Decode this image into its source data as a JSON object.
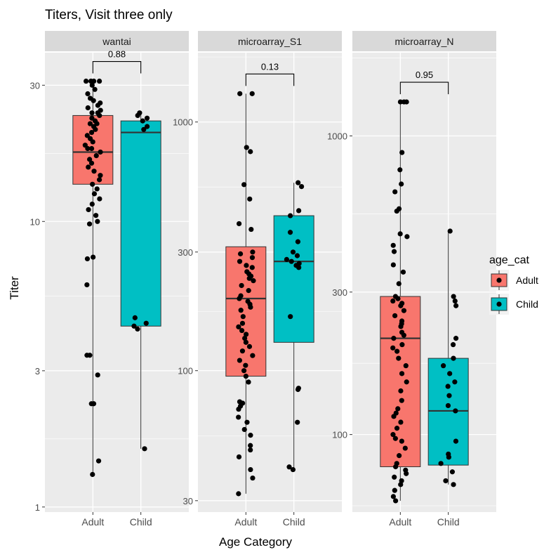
{
  "chart_data": {
    "type": "boxplot",
    "title": "Titers, Visit three only",
    "xlabel": "Age Category",
    "ylabel": "Titer",
    "y_scale": "log10",
    "categories": [
      "Adult",
      "Child"
    ],
    "legend": {
      "title": "age_cat",
      "position": "right",
      "entries": [
        {
          "label": "Adult",
          "color": "#F8766D"
        },
        {
          "label": "Child",
          "color": "#00BFC4"
        }
      ]
    },
    "panels": [
      {
        "strip": "wantai",
        "ylim": [
          0.96,
          39
        ],
        "yticks": [
          1,
          3,
          10,
          30
        ],
        "pvalue": "0.88",
        "boxes": [
          {
            "group": "Adult",
            "min": 1.3,
            "q1": 13.5,
            "median": 17.5,
            "q3": 23.5,
            "max": 31
          },
          {
            "group": "Child",
            "min": 1.6,
            "q1": 4.3,
            "median": 20.5,
            "q3": 22.5,
            "max": 24
          }
        ],
        "points": [
          {
            "group": "Adult",
            "values": [
              31,
              31,
              31,
              31,
              30,
              29,
              28,
              27,
              26.5,
              26,
              25.5,
              25,
              24.5,
              24,
              24,
              23.5,
              23,
              22.5,
              22,
              22,
              21.5,
              21,
              20.5,
              20,
              19.5,
              19,
              18.5,
              18,
              18,
              17.5,
              17,
              16.5,
              16,
              15.5,
              15,
              14.5,
              14,
              13.5,
              13,
              12.5,
              12,
              11.5,
              11,
              10.5,
              10,
              9.8,
              7.5,
              7.4,
              6.0,
              3.4,
              3.4,
              2.9,
              2.3,
              2.3,
              1.45,
              1.3
            ]
          },
          {
            "group": "Child",
            "values": [
              24,
              23.5,
              23,
              22.5,
              21.5,
              21,
              4.6,
              4.4,
              4.3,
              4.2,
              1.6
            ]
          }
        ]
      },
      {
        "strip": "microarray_S1",
        "ylim": [
          27,
          1900
        ],
        "yticks": [
          30,
          100,
          300,
          1000
        ],
        "pvalue": "0.13",
        "boxes": [
          {
            "group": "Adult",
            "min": 32,
            "q1": 95,
            "median": 195,
            "q3": 315,
            "max": 1300
          },
          {
            "group": "Child",
            "min": 40,
            "q1": 130,
            "median": 275,
            "q3": 420,
            "max": 570
          }
        ],
        "points": [
          {
            "group": "Adult",
            "values": [
              1300,
              1300,
              790,
              760,
              560,
              490,
              390,
              370,
              300,
              295,
              285,
              275,
              265,
              260,
              250,
              245,
              240,
              235,
              230,
              220,
              210,
              200,
              195,
              190,
              185,
              180,
              175,
              165,
              155,
              150,
              145,
              140,
              135,
              130,
              125,
              120,
              115,
              110,
              105,
              100,
              95,
              90,
              75,
              74,
              72,
              70,
              65,
              62,
              58,
              55,
              50,
              48,
              45,
              40,
              37,
              32
            ]
          },
          {
            "group": "Child",
            "values": [
              570,
              550,
              440,
              420,
              360,
              330,
              300,
              290,
              280,
              275,
              270,
              265,
              260,
              165,
              85,
              84,
              62,
              41,
              40
            ]
          }
        ]
      },
      {
        "strip": "microarray_N",
        "ylim": [
          55,
          1900
        ],
        "yticks": [
          100,
          300,
          1000
        ],
        "pvalue": "0.95",
        "boxes": [
          {
            "group": "Adult",
            "min": 60,
            "q1": 78,
            "median": 210,
            "q3": 290,
            "max": 1300
          },
          {
            "group": "Child",
            "min": 68,
            "q1": 79,
            "median": 120,
            "q3": 180,
            "max": 480
          }
        ],
        "points": [
          {
            "group": "Adult",
            "values": [
              1300,
              1300,
              1300,
              880,
              770,
              690,
              650,
              570,
              560,
              470,
              460,
              430,
              410,
              370,
              350,
              320,
              290,
              285,
              280,
              275,
              270,
              260,
              250,
              240,
              235,
              230,
              220,
              215,
              210,
              200,
              195,
              190,
              180,
              170,
              160,
              150,
              140,
              130,
              122,
              118,
              115,
              110,
              105,
              100,
              97,
              95,
              90,
              85,
              80,
              78,
              76,
              74,
              72,
              70,
              68,
              65,
              62,
              60
            ]
          },
          {
            "group": "Child",
            "values": [
              480,
              290,
              280,
              270,
              210,
              200,
              180,
              170,
              160,
              150,
              145,
              135,
              125,
              120,
              95,
              86,
              84,
              80,
              75,
              70,
              68
            ]
          }
        ]
      }
    ]
  }
}
